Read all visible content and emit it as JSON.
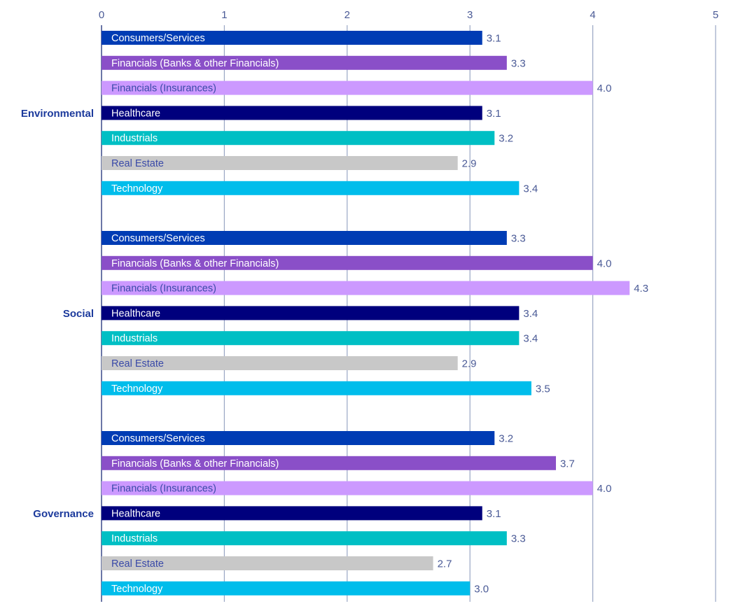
{
  "chart_data": {
    "type": "bar",
    "orientation": "horizontal",
    "title": "",
    "xlabel": "",
    "ylabel": "",
    "xlim": [
      0,
      5
    ],
    "x_ticks": [
      "0",
      "1",
      "2",
      "3",
      "4",
      "5"
    ],
    "grid": true,
    "categories": [
      "Consumers/Services",
      "Financials (Banks & other Financials)",
      "Financials (Insurances)",
      "Healthcare",
      "Industrials",
      "Real Estate",
      "Technology"
    ],
    "colors": [
      "#003cb4",
      "#8a4fc8",
      "#cc99ff",
      "#00007d",
      "#00bfc4",
      "#c8c8c8",
      "#00bdeb"
    ],
    "label_colors": [
      "#ffffff",
      "#ffffff",
      "#3a4aa8",
      "#ffffff",
      "#ffffff",
      "#3a4aa8",
      "#ffffff"
    ],
    "groups": [
      {
        "name": "Environmental",
        "values": [
          3.1,
          3.3,
          4.0,
          3.1,
          3.2,
          2.9,
          3.4
        ],
        "value_labels": [
          "3.1",
          "3.3",
          "4.0",
          "3.1",
          "3.2",
          "2.9",
          "3.4"
        ]
      },
      {
        "name": "Social",
        "values": [
          3.3,
          4.0,
          4.3,
          3.4,
          3.4,
          2.9,
          3.5
        ],
        "value_labels": [
          "3.3",
          "4.0",
          "4.3",
          "3.4",
          "3.4",
          "2.9",
          "3.5"
        ]
      },
      {
        "name": "Governance",
        "values": [
          3.2,
          3.7,
          4.0,
          3.1,
          3.3,
          2.7,
          3.0
        ],
        "value_labels": [
          "3.2",
          "3.7",
          "4.0",
          "3.1",
          "3.3",
          "2.7",
          "3.0"
        ]
      }
    ]
  }
}
